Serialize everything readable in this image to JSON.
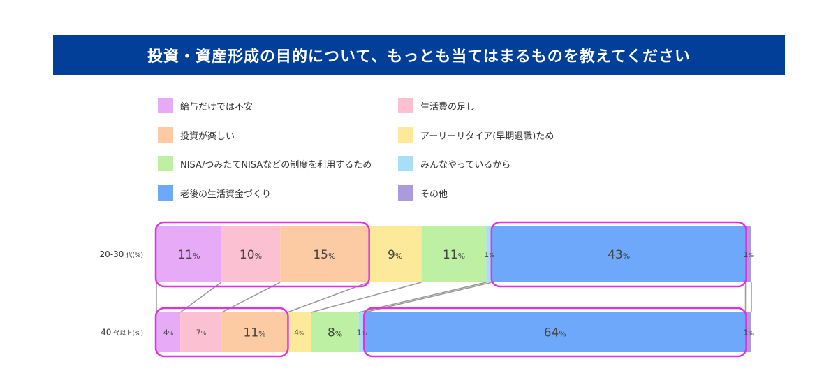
{
  "title": "投資・資産形成の目的について、もっとも当てはまるものを教えてください",
  "colors": {
    "title_bg": "#013f99",
    "highlight": "#e033e0",
    "connector": "#999999"
  },
  "chart_data": {
    "type": "bar",
    "orientation": "horizontal",
    "stacked": true,
    "normalized": "100%",
    "title": "投資・資産形成の目的について、もっとも当てはまるものを教えてください",
    "categories": [
      "20-30 代(%)",
      "40 代以上(%)"
    ],
    "category_display": [
      {
        "main": "20-30",
        "suffix": "代(%)"
      },
      {
        "main": "40",
        "suffix": "代以上(%)"
      }
    ],
    "series": [
      {
        "name": "給与だけでは不安",
        "color": "#e6aaf7",
        "values": [
          11,
          4
        ]
      },
      {
        "name": "生活費の足し",
        "color": "#fcc0d3",
        "values": [
          10,
          7
        ]
      },
      {
        "name": "投資が楽しい",
        "color": "#fdcba3",
        "values": [
          15,
          11
        ]
      },
      {
        "name": "アーリーリタイア(早期退職)ため",
        "color": "#fde99a",
        "values": [
          9,
          4
        ]
      },
      {
        "name": "NISA/つみたてNISAなどの制度を利用するため",
        "color": "#bdf0a3",
        "values": [
          11,
          8
        ]
      },
      {
        "name": "みんなやっているから",
        "color": "#a9def7",
        "values": [
          1,
          1
        ]
      },
      {
        "name": "老後の生活資金づくり",
        "color": "#6ea8fa",
        "values": [
          43,
          64
        ]
      },
      {
        "name": "その他",
        "color": "#ab9bdd",
        "values": [
          1,
          1
        ]
      }
    ],
    "unit_suffix": "%",
    "legend_position": "top",
    "grid": false,
    "highlight_groups": [
      {
        "row": 0,
        "series": [
          0,
          2
        ]
      },
      {
        "row": 0,
        "series": [
          6,
          6
        ]
      },
      {
        "row": 1,
        "series": [
          0,
          2
        ]
      },
      {
        "row": 1,
        "series": [
          6,
          6
        ]
      }
    ]
  }
}
